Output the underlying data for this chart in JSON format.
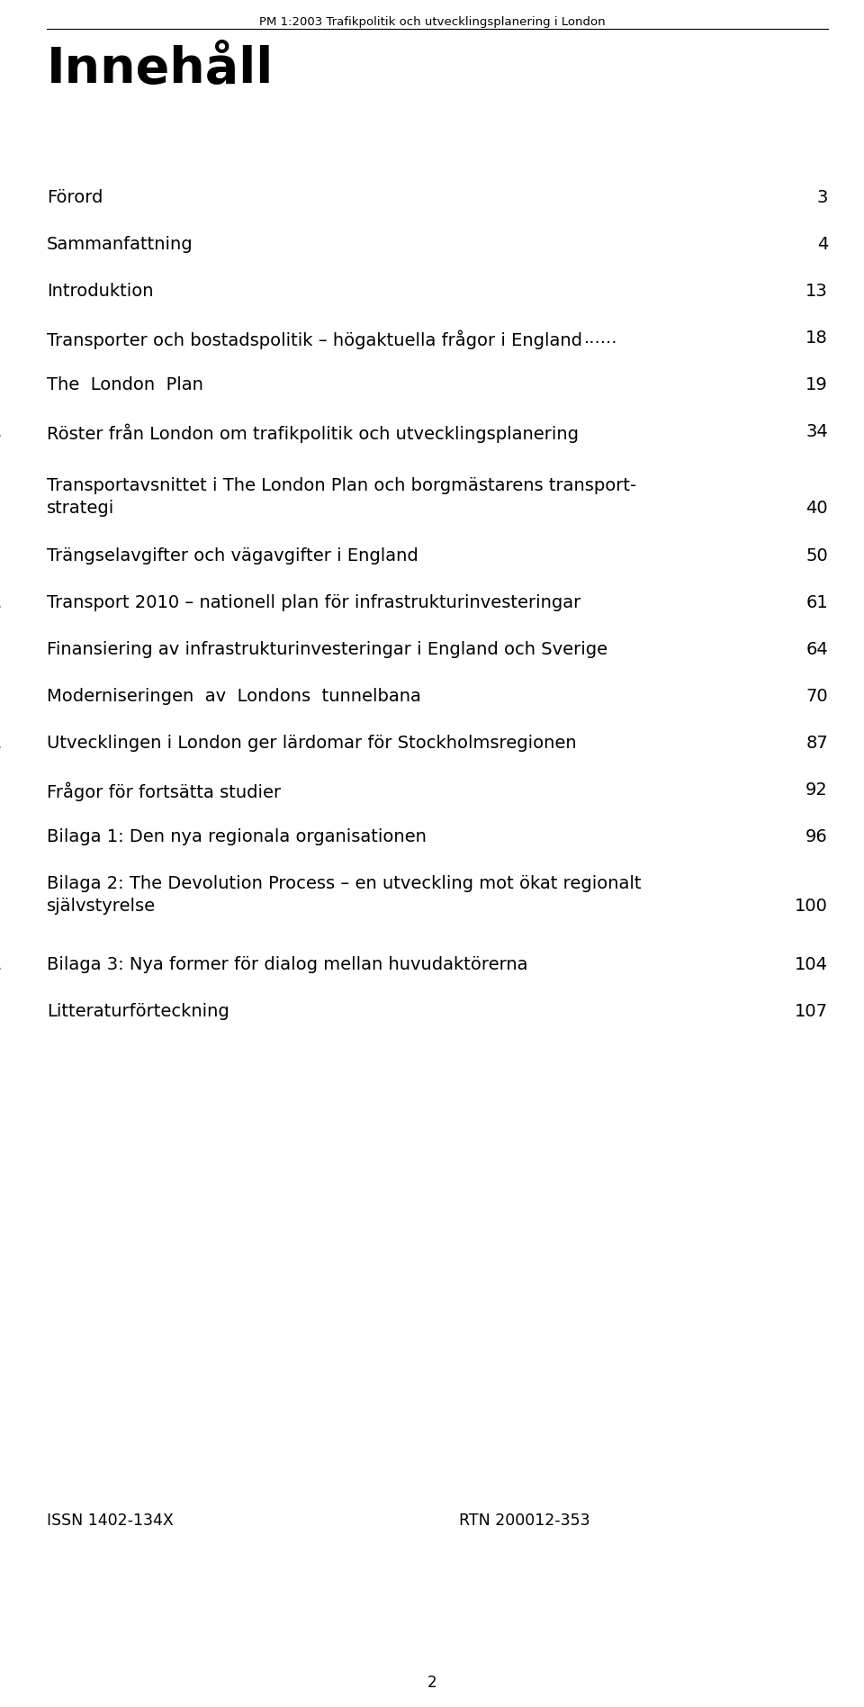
{
  "header": "PM 1:2003 Trafikpolitik och utvecklingsplanering i London",
  "title": "Innehåll",
  "background_color": "#ffffff",
  "text_color": "#000000",
  "entries": [
    {
      "line1": "Förord",
      "line2": null,
      "page": "3",
      "dot_style": "full"
    },
    {
      "line1": "Sammanfattning",
      "line2": null,
      "page": "4",
      "dot_style": "full"
    },
    {
      "line1": "Introduktion",
      "line2": null,
      "page": "13",
      "dot_style": "full"
    },
    {
      "line1": "Transporter och bostadspolitik – högaktuella frågor i England",
      "line2": null,
      "page": "18",
      "dot_style": "close"
    },
    {
      "line1": "The  London  Plan",
      "line2": null,
      "page": "19",
      "dot_style": "full"
    },
    {
      "line1": "Röster från London om trafikpolitik och utvecklingsplanering",
      "line2": null,
      "page": "34",
      "dot_style": "few"
    },
    {
      "line1": "Transportavsnittet i The London Plan och borgmästarens transport-",
      "line2": "strategi",
      "page": "40",
      "dot_style": "full"
    },
    {
      "line1": "Trängselavgifter och vägavgifter i England",
      "line2": null,
      "page": "50",
      "dot_style": "full"
    },
    {
      "line1": "Transport 2010 – nationell plan för infrastrukturinvesteringar",
      "line2": null,
      "page": "61",
      "dot_style": "few"
    },
    {
      "line1": "Finansiering av infrastrukturinvesteringar i England och Sverige",
      "line2": null,
      "page": "64",
      "dot_style": "one"
    },
    {
      "line1": "Moderniseringen  av  Londons  tunnelbana",
      "line2": null,
      "page": "70",
      "dot_style": "full"
    },
    {
      "line1": "Utvecklingen i London ger lärdomar för Stockholmsregionen",
      "line2": null,
      "page": "87",
      "dot_style": "few"
    },
    {
      "line1": "Frågor för fortsätta studier",
      "line2": null,
      "page": "92",
      "dot_style": "full"
    },
    {
      "line1": "Bilaga 1: Den nya regionala organisationen",
      "line2": null,
      "page": "96",
      "dot_style": "full"
    },
    {
      "line1": "Bilaga 2: The Devolution Process – en utveckling mot ökat regionalt",
      "line2": "självstyrelse",
      "page": "100",
      "dot_style": "full"
    },
    {
      "line1": "Bilaga 3: Nya former för dialog mellan huvudaktörerna",
      "line2": null,
      "page": "104",
      "dot_style": "few"
    },
    {
      "line1": "Litteraturförteckning",
      "line2": null,
      "page": "107",
      "dot_style": "full"
    }
  ],
  "footer_left": "ISSN 1402-134X",
  "footer_right": "RTN 200012-353",
  "page_number": "2",
  "header_fontsize": 9.5,
  "title_fontsize": 40,
  "entry_fontsize": 14,
  "footer_fontsize": 12.5,
  "page_num_fontsize": 12
}
